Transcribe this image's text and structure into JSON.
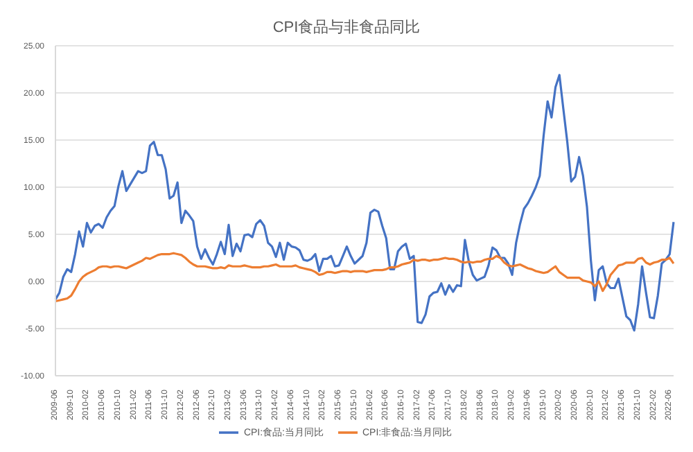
{
  "chart_data": {
    "type": "line",
    "title": "CPI食品与非食品同比",
    "categories": [
      "2009-06",
      null,
      null,
      null,
      "2009-10",
      null,
      null,
      null,
      "2010-02",
      null,
      null,
      null,
      "2010-06",
      null,
      null,
      null,
      "2010-10",
      null,
      null,
      null,
      "2011-02",
      null,
      null,
      null,
      "2011-06",
      null,
      null,
      null,
      "2011-10",
      null,
      null,
      null,
      "2012-02",
      null,
      null,
      null,
      "2012-06",
      null,
      null,
      null,
      "2012-10",
      null,
      null,
      null,
      "2013-02",
      null,
      null,
      null,
      "2013-06",
      null,
      null,
      null,
      "2013-10",
      null,
      null,
      null,
      "2014-02",
      null,
      null,
      null,
      "2014-06",
      null,
      null,
      null,
      "2014-10",
      null,
      null,
      null,
      "2015-02",
      null,
      null,
      null,
      "2015-06",
      null,
      null,
      null,
      "2015-10",
      null,
      null,
      null,
      "2016-02",
      null,
      null,
      null,
      "2016-06",
      null,
      null,
      null,
      "2016-10",
      null,
      null,
      null,
      "2017-02",
      null,
      null,
      null,
      "2017-06",
      null,
      null,
      null,
      "2017-10",
      null,
      null,
      null,
      "2018-02",
      null,
      null,
      null,
      "2018-06",
      null,
      null,
      null,
      "2018-10",
      null,
      null,
      null,
      "2019-02",
      null,
      null,
      null,
      "2019-06",
      null,
      null,
      null,
      "2019-10",
      null,
      null,
      null,
      "2020-02",
      null,
      null,
      null,
      "2020-06",
      null,
      null,
      null,
      "2020-10",
      null,
      null,
      null,
      "2021-02",
      null,
      null,
      null,
      "2021-06",
      null,
      null,
      null,
      "2021-10",
      null,
      null,
      null,
      "2022-02",
      null,
      null,
      null,
      "2022-06",
      null
    ],
    "series": [
      {
        "name": "CPI:食品:当月同比",
        "color": "#4472c4",
        "values": [
          -1.9,
          -1.2,
          0.5,
          1.3,
          1.0,
          2.9,
          5.3,
          3.7,
          6.2,
          5.2,
          5.9,
          6.1,
          5.7,
          6.8,
          7.5,
          8.0,
          10.1,
          11.7,
          9.6,
          10.3,
          11.0,
          11.7,
          11.5,
          11.7,
          14.4,
          14.8,
          13.4,
          13.4,
          11.9,
          8.8,
          9.1,
          10.5,
          6.2,
          7.5,
          7.0,
          6.4,
          3.7,
          2.4,
          3.4,
          2.5,
          1.8,
          2.9,
          4.2,
          2.9,
          6.0,
          2.7,
          4.0,
          3.2,
          4.9,
          5.0,
          4.7,
          6.1,
          6.5,
          5.9,
          4.1,
          3.7,
          2.6,
          4.1,
          2.3,
          4.1,
          3.7,
          3.6,
          3.3,
          2.3,
          2.2,
          2.4,
          2.9,
          1.1,
          2.4,
          2.4,
          2.7,
          1.6,
          1.7,
          2.7,
          3.7,
          2.7,
          1.9,
          2.3,
          2.7,
          4.1,
          7.3,
          7.6,
          7.4,
          5.9,
          4.6,
          1.3,
          1.3,
          3.2,
          3.7,
          4.0,
          2.4,
          2.7,
          -4.3,
          -4.4,
          -3.5,
          -1.6,
          -1.2,
          -1.1,
          -0.2,
          -1.4,
          -0.4,
          -1.1,
          -0.4,
          -0.5,
          4.4,
          2.1,
          0.7,
          0.1,
          0.3,
          0.5,
          1.7,
          3.6,
          3.3,
          2.5,
          2.5,
          1.9,
          0.7,
          4.1,
          6.1,
          7.7,
          8.3,
          9.1,
          10.0,
          11.2,
          15.5,
          19.1,
          17.4,
          20.6,
          21.9,
          18.3,
          14.8,
          10.6,
          11.1,
          13.2,
          11.2,
          7.9,
          2.2,
          -2.0,
          1.2,
          1.6,
          -0.2,
          -0.7,
          -0.7,
          0.3,
          -1.7,
          -3.7,
          -4.1,
          -5.2,
          -2.4,
          1.6,
          -1.2,
          -3.8,
          -3.9,
          -1.5,
          1.9,
          2.3,
          2.9,
          6.3
        ]
      },
      {
        "name": "CPI:非食品:当月同比",
        "color": "#ed7d31",
        "values": [
          -2.1,
          -2.0,
          -1.9,
          -1.8,
          -1.5,
          -0.8,
          0.0,
          0.5,
          0.8,
          1.0,
          1.2,
          1.5,
          1.6,
          1.6,
          1.5,
          1.6,
          1.6,
          1.5,
          1.4,
          1.6,
          1.8,
          2.0,
          2.2,
          2.5,
          2.4,
          2.6,
          2.8,
          2.9,
          2.9,
          2.9,
          3.0,
          2.9,
          2.8,
          2.5,
          2.1,
          1.8,
          1.6,
          1.6,
          1.6,
          1.5,
          1.4,
          1.4,
          1.5,
          1.4,
          1.7,
          1.6,
          1.6,
          1.6,
          1.7,
          1.6,
          1.5,
          1.5,
          1.5,
          1.6,
          1.6,
          1.7,
          1.8,
          1.6,
          1.6,
          1.6,
          1.6,
          1.7,
          1.5,
          1.4,
          1.3,
          1.2,
          1.0,
          0.7,
          0.8,
          1.0,
          1.0,
          0.9,
          1.0,
          1.1,
          1.1,
          1.0,
          1.1,
          1.1,
          1.1,
          1.0,
          1.1,
          1.2,
          1.2,
          1.2,
          1.3,
          1.5,
          1.5,
          1.6,
          1.8,
          1.9,
          2.0,
          2.3,
          2.2,
          2.3,
          2.3,
          2.2,
          2.3,
          2.3,
          2.4,
          2.5,
          2.4,
          2.4,
          2.3,
          2.1,
          2.0,
          2.1,
          2.0,
          2.1,
          2.1,
          2.3,
          2.4,
          2.4,
          2.7,
          2.5,
          2.0,
          1.7,
          1.6,
          1.7,
          1.8,
          1.6,
          1.4,
          1.3,
          1.1,
          1.0,
          0.9,
          1.0,
          1.3,
          1.6,
          1.0,
          0.7,
          0.4,
          0.4,
          0.4,
          0.4,
          0.1,
          0.0,
          -0.1,
          -0.5,
          0.0,
          -1.0,
          -0.3,
          0.7,
          1.2,
          1.7,
          1.8,
          2.0,
          2.0,
          2.0,
          2.4,
          2.5,
          2.0,
          1.8,
          2.0,
          2.1,
          2.3,
          2.3,
          2.5,
          1.9
        ]
      }
    ],
    "ylim": [
      -10,
      25
    ],
    "yticks": [
      {
        "value": -10,
        "label": "-10.00"
      },
      {
        "value": -5,
        "label": "-5.00"
      },
      {
        "value": 0,
        "label": "0.00"
      },
      {
        "value": 5,
        "label": "5.00"
      },
      {
        "value": 10,
        "label": "10.00"
      },
      {
        "value": 15,
        "label": "15.00"
      },
      {
        "value": 20,
        "label": "20.00"
      },
      {
        "value": 25,
        "label": "25.00"
      }
    ],
    "grid": "y",
    "legend": "bottom",
    "marker": "none",
    "line_style": "solid"
  }
}
